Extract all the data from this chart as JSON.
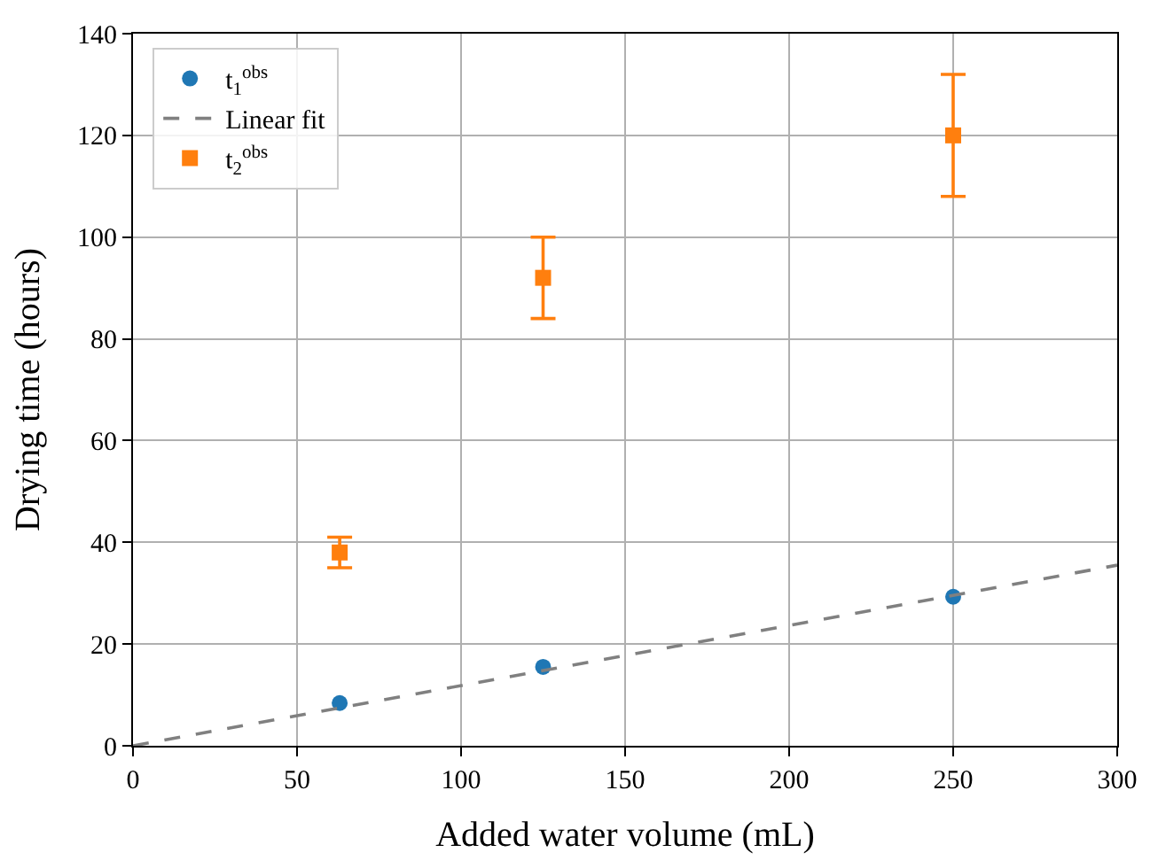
{
  "chart_data": {
    "type": "scatter",
    "xlabel": "Added water volume (mL)",
    "ylabel": "Drying time (hours)",
    "xlim": [
      0,
      300
    ],
    "xticks": [
      0,
      50,
      100,
      150,
      200,
      250,
      300
    ],
    "ylim": [
      0,
      140
    ],
    "yticks": [
      0,
      20,
      40,
      60,
      80,
      100,
      120,
      140
    ],
    "grid": true,
    "legend": "top left",
    "series": [
      {
        "name": "t$_{1}$$^{obs}$",
        "marker": "circle",
        "color": "#1f77b4",
        "x": [
          63,
          125,
          250
        ],
        "values": [
          8.4,
          15.5,
          29.3
        ]
      },
      {
        "name": "Linear fit",
        "type": "line",
        "line_style": "dashed",
        "marker": "none",
        "color": "#808080",
        "x": [
          0,
          300
        ],
        "values": [
          0,
          35.5
        ]
      },
      {
        "name": "t$_{2}$$^{obs}$",
        "marker": "square",
        "color": "#ff7f0e",
        "x": [
          63,
          125,
          250
        ],
        "values": [
          38,
          92,
          120
        ],
        "errors": [
          [
            35,
            41
          ],
          [
            84,
            100
          ],
          [
            108,
            132
          ]
        ]
      }
    ]
  }
}
